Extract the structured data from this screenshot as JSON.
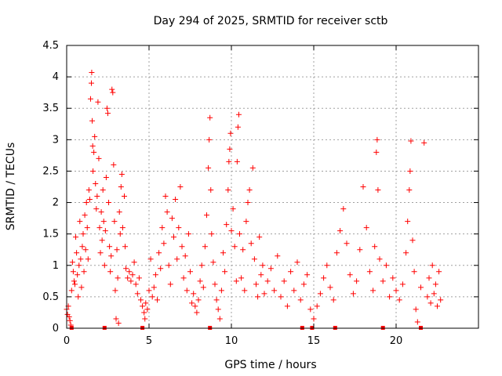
{
  "chart_data": {
    "type": "scatter",
    "title": "Day 294 of 2025, SRMTID for receiver sctb",
    "xlabel": "GPS time / hours",
    "ylabel": "SRMTID / TECUs",
    "xlim": [
      0,
      25
    ],
    "ylim": [
      0,
      4.5
    ],
    "xticks": [
      0,
      5,
      10,
      15,
      20
    ],
    "yticks": [
      0,
      0.5,
      1,
      1.5,
      2,
      2.5,
      3,
      3.5,
      4,
      4.5
    ],
    "grid": true,
    "marker": "plus",
    "marker_color": "#ff0000",
    "series": [
      {
        "name": "SRMTID",
        "points": [
          [
            0.0,
            0.3
          ],
          [
            0.05,
            0.22
          ],
          [
            0.1,
            0.35
          ],
          [
            0.15,
            0.18
          ],
          [
            0.2,
            0.12
          ],
          [
            0.25,
            0.05
          ],
          [
            0.3,
            0.6
          ],
          [
            0.35,
            1.05
          ],
          [
            0.4,
            0.9
          ],
          [
            0.45,
            0.75
          ],
          [
            0.5,
            0.7
          ],
          [
            0.55,
            1.45
          ],
          [
            0.6,
            1.2
          ],
          [
            0.65,
            0.85
          ],
          [
            0.7,
            0.5
          ],
          [
            0.75,
            1.0
          ],
          [
            0.8,
            1.7
          ],
          [
            0.85,
            1.1
          ],
          [
            0.9,
            0.65
          ],
          [
            0.95,
            1.3
          ],
          [
            1.0,
            1.5
          ],
          [
            1.05,
            0.9
          ],
          [
            1.1,
            1.8
          ],
          [
            1.15,
            1.25
          ],
          [
            1.2,
            2.0
          ],
          [
            1.25,
            1.6
          ],
          [
            1.3,
            1.1
          ],
          [
            1.35,
            2.2
          ],
          [
            1.4,
            2.05
          ],
          [
            1.45,
            3.65
          ],
          [
            1.5,
            3.9
          ],
          [
            1.52,
            4.07
          ],
          [
            1.55,
            3.3
          ],
          [
            1.58,
            2.9
          ],
          [
            1.6,
            2.5
          ],
          [
            1.65,
            2.8
          ],
          [
            1.7,
            3.05
          ],
          [
            1.75,
            2.3
          ],
          [
            1.8,
            1.9
          ],
          [
            1.85,
            2.1
          ],
          [
            1.9,
            3.6
          ],
          [
            1.95,
            2.7
          ],
          [
            2.0,
            1.6
          ],
          [
            2.05,
            1.2
          ],
          [
            2.1,
            1.85
          ],
          [
            2.15,
            1.4
          ],
          [
            2.2,
            2.2
          ],
          [
            2.25,
            1.7
          ],
          [
            2.3,
            1.0
          ],
          [
            2.35,
            1.55
          ],
          [
            2.4,
            2.4
          ],
          [
            2.45,
            3.5
          ],
          [
            2.5,
            3.42
          ],
          [
            2.55,
            2.0
          ],
          [
            2.6,
            1.3
          ],
          [
            2.65,
            0.9
          ],
          [
            2.7,
            1.15
          ],
          [
            2.75,
            3.8
          ],
          [
            2.8,
            3.75
          ],
          [
            2.85,
            2.6
          ],
          [
            2.9,
            1.7
          ],
          [
            2.95,
            0.6
          ],
          [
            3.0,
            0.15
          ],
          [
            3.05,
            1.25
          ],
          [
            3.1,
            0.8
          ],
          [
            3.15,
            0.08
          ],
          [
            3.2,
            1.85
          ],
          [
            3.25,
            1.5
          ],
          [
            3.3,
            2.25
          ],
          [
            3.35,
            2.45
          ],
          [
            3.4,
            1.6
          ],
          [
            3.5,
            2.1
          ],
          [
            3.55,
            1.3
          ],
          [
            3.6,
            0.95
          ],
          [
            3.7,
            0.8
          ],
          [
            3.8,
            0.9
          ],
          [
            3.9,
            0.75
          ],
          [
            4.0,
            0.85
          ],
          [
            4.1,
            1.05
          ],
          [
            4.2,
            0.7
          ],
          [
            4.3,
            0.55
          ],
          [
            4.4,
            0.8
          ],
          [
            4.5,
            0.45
          ],
          [
            4.6,
            0.35
          ],
          [
            4.7,
            0.25
          ],
          [
            4.75,
            0.15
          ],
          [
            4.8,
            0.4
          ],
          [
            4.9,
            0.3
          ],
          [
            5.0,
            0.6
          ],
          [
            5.1,
            1.1
          ],
          [
            5.2,
            0.5
          ],
          [
            5.3,
            0.65
          ],
          [
            5.4,
            0.85
          ],
          [
            5.5,
            0.45
          ],
          [
            5.6,
            1.2
          ],
          [
            5.7,
            0.95
          ],
          [
            5.8,
            1.6
          ],
          [
            5.9,
            1.35
          ],
          [
            6.0,
            2.1
          ],
          [
            6.1,
            1.85
          ],
          [
            6.2,
            1.0
          ],
          [
            6.3,
            0.7
          ],
          [
            6.4,
            1.75
          ],
          [
            6.5,
            1.45
          ],
          [
            6.6,
            2.05
          ],
          [
            6.7,
            1.1
          ],
          [
            6.8,
            1.6
          ],
          [
            6.9,
            2.25
          ],
          [
            7.0,
            1.3
          ],
          [
            7.1,
            0.8
          ],
          [
            7.2,
            1.15
          ],
          [
            7.3,
            0.6
          ],
          [
            7.4,
            1.5
          ],
          [
            7.5,
            0.9
          ],
          [
            7.6,
            0.4
          ],
          [
            7.7,
            0.55
          ],
          [
            7.8,
            0.35
          ],
          [
            7.9,
            0.25
          ],
          [
            8.0,
            0.45
          ],
          [
            8.1,
            0.75
          ],
          [
            8.2,
            1.0
          ],
          [
            8.3,
            0.65
          ],
          [
            8.4,
            1.3
          ],
          [
            8.5,
            1.8
          ],
          [
            8.6,
            2.55
          ],
          [
            8.65,
            3.0
          ],
          [
            8.7,
            3.35
          ],
          [
            8.75,
            2.2
          ],
          [
            8.8,
            1.5
          ],
          [
            8.9,
            1.05
          ],
          [
            9.0,
            0.7
          ],
          [
            9.1,
            0.45
          ],
          [
            9.2,
            0.3
          ],
          [
            9.3,
            0.15
          ],
          [
            9.4,
            0.6
          ],
          [
            9.5,
            1.2
          ],
          [
            9.6,
            0.9
          ],
          [
            9.7,
            1.65
          ],
          [
            9.8,
            2.2
          ],
          [
            9.85,
            2.65
          ],
          [
            9.9,
            2.85
          ],
          [
            9.95,
            3.1
          ],
          [
            10.0,
            1.55
          ],
          [
            10.1,
            1.9
          ],
          [
            10.2,
            1.3
          ],
          [
            10.3,
            0.75
          ],
          [
            10.35,
            2.65
          ],
          [
            10.4,
            3.2
          ],
          [
            10.45,
            3.4
          ],
          [
            10.5,
            1.5
          ],
          [
            10.6,
            0.8
          ],
          [
            10.7,
            1.25
          ],
          [
            10.8,
            0.6
          ],
          [
            10.9,
            1.7
          ],
          [
            11.0,
            2.0
          ],
          [
            11.1,
            2.2
          ],
          [
            11.2,
            1.35
          ],
          [
            11.3,
            2.55
          ],
          [
            11.4,
            1.1
          ],
          [
            11.5,
            0.7
          ],
          [
            11.6,
            0.5
          ],
          [
            11.7,
            1.45
          ],
          [
            11.8,
            0.85
          ],
          [
            11.9,
            1.0
          ],
          [
            12.0,
            0.55
          ],
          [
            12.2,
            0.75
          ],
          [
            12.4,
            0.95
          ],
          [
            12.6,
            0.6
          ],
          [
            12.8,
            1.15
          ],
          [
            13.0,
            0.5
          ],
          [
            13.2,
            0.75
          ],
          [
            13.4,
            0.35
          ],
          [
            13.6,
            0.9
          ],
          [
            13.8,
            0.6
          ],
          [
            14.0,
            1.05
          ],
          [
            14.2,
            0.45
          ],
          [
            14.4,
            0.7
          ],
          [
            14.6,
            0.85
          ],
          [
            14.8,
            0.3
          ],
          [
            15.0,
            0.15
          ],
          [
            15.2,
            0.35
          ],
          [
            15.4,
            0.55
          ],
          [
            15.6,
            0.8
          ],
          [
            15.8,
            1.0
          ],
          [
            16.0,
            0.65
          ],
          [
            16.2,
            0.45
          ],
          [
            16.4,
            1.2
          ],
          [
            16.6,
            1.55
          ],
          [
            16.8,
            1.9
          ],
          [
            17.0,
            1.35
          ],
          [
            17.2,
            0.85
          ],
          [
            17.4,
            0.55
          ],
          [
            17.6,
            0.75
          ],
          [
            17.8,
            1.25
          ],
          [
            18.0,
            2.25
          ],
          [
            18.2,
            1.6
          ],
          [
            18.4,
            0.9
          ],
          [
            18.6,
            0.6
          ],
          [
            18.7,
            1.3
          ],
          [
            18.8,
            2.8
          ],
          [
            18.85,
            3.0
          ],
          [
            18.9,
            2.2
          ],
          [
            19.0,
            1.1
          ],
          [
            19.2,
            0.75
          ],
          [
            19.4,
            1.0
          ],
          [
            19.6,
            0.5
          ],
          [
            19.8,
            0.8
          ],
          [
            20.0,
            0.6
          ],
          [
            20.2,
            0.45
          ],
          [
            20.4,
            0.7
          ],
          [
            20.6,
            1.2
          ],
          [
            20.7,
            1.7
          ],
          [
            20.8,
            2.2
          ],
          [
            20.85,
            2.5
          ],
          [
            20.9,
            2.98
          ],
          [
            21.0,
            1.4
          ],
          [
            21.1,
            0.9
          ],
          [
            21.2,
            0.3
          ],
          [
            21.3,
            0.1
          ],
          [
            21.5,
            0.65
          ],
          [
            21.7,
            2.95
          ],
          [
            21.9,
            0.5
          ],
          [
            22.0,
            0.8
          ],
          [
            22.1,
            0.4
          ],
          [
            22.2,
            1.0
          ],
          [
            22.3,
            0.55
          ],
          [
            22.4,
            0.7
          ],
          [
            22.5,
            0.35
          ],
          [
            22.6,
            0.9
          ],
          [
            22.7,
            0.45
          ]
        ]
      }
    ],
    "baseline_markers_x": [
      0.3,
      2.3,
      4.6,
      8.7,
      14.3,
      14.9,
      16.3,
      19.2,
      21.5
    ]
  }
}
